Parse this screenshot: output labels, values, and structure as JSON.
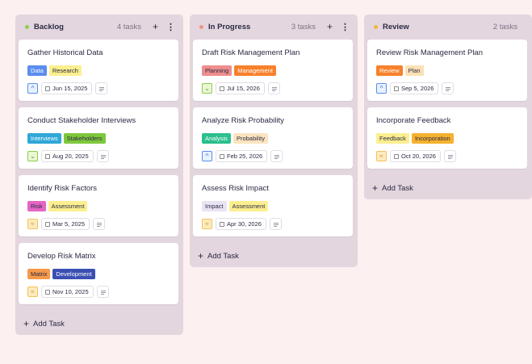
{
  "colors": {
    "background": "#fdf0f0",
    "column": "#e3d6de",
    "text": "#2b2a45"
  },
  "columns": [
    {
      "title": "Backlog",
      "count": "4 tasks",
      "dot": "#8fce55",
      "add_task": "Add Task",
      "cards": [
        {
          "title": "Gather Historical Data",
          "tags": [
            {
              "label": "Data",
              "bg": "#5b8def",
              "fg": "#fff"
            },
            {
              "label": "Research",
              "bg": "#fcef8f",
              "fg": "#2b2a45"
            }
          ],
          "priority": "up-chevron",
          "date": "Jun 15, 2025"
        },
        {
          "title": "Conduct Stakeholder Interviews",
          "tags": [
            {
              "label": "Interviews",
              "bg": "#2fa7d8",
              "fg": "#fff"
            },
            {
              "label": "Stakeholders",
              "bg": "#7ec83c",
              "fg": "#2b2a45"
            }
          ],
          "priority": "down-chevron",
          "date": "Aug 20, 2025"
        },
        {
          "title": "Identify Risk Factors",
          "tags": [
            {
              "label": "Risk",
              "bg": "#e566c7",
              "fg": "#2b2a45"
            },
            {
              "label": "Assessment",
              "bg": "#fcef8f",
              "fg": "#2b2a45"
            }
          ],
          "priority": "double-up-chevron",
          "date": "Mar 5, 2025"
        },
        {
          "title": "Develop Risk Matrix",
          "tags": [
            {
              "label": "Matrix",
              "bg": "#f5994a",
              "fg": "#2b2a45"
            },
            {
              "label": "Development",
              "bg": "#3b4fb3",
              "fg": "#fff"
            }
          ],
          "priority": "double-up-chevron",
          "date": "Nov 10, 2025"
        }
      ]
    },
    {
      "title": "In Progress",
      "count": "3 tasks",
      "dot": "#f2958a",
      "add_task": "Add Task",
      "cards": [
        {
          "title": "Draft Risk Management Plan",
          "tags": [
            {
              "label": "Planning",
              "bg": "#ee8e8e",
              "fg": "#2b2a45"
            },
            {
              "label": "Management",
              "bg": "#f7812c",
              "fg": "#fff"
            }
          ],
          "priority": "down-chevron",
          "date": "Jul 15, 2026"
        },
        {
          "title": "Analyze Risk Probability",
          "tags": [
            {
              "label": "Analysis",
              "bg": "#2bbf8c",
              "fg": "#fff"
            },
            {
              "label": "Probability",
              "bg": "#fbe4bf",
              "fg": "#2b2a45"
            }
          ],
          "priority": "up-chevron",
          "date": "Feb 25, 2026"
        },
        {
          "title": "Assess Risk Impact",
          "tags": [
            {
              "label": "Impact",
              "bg": "#e9e3f4",
              "fg": "#2b2a45"
            },
            {
              "label": "Assessment",
              "bg": "#fcef8f",
              "fg": "#2b2a45"
            }
          ],
          "priority": "double-up-chevron",
          "date": "Apr 30, 2026"
        }
      ]
    },
    {
      "title": "Review",
      "count": "2 tasks",
      "dot": "#f3b53a",
      "add_task": "Add Task",
      "cards": [
        {
          "title": "Review Risk Management Plan",
          "tags": [
            {
              "label": "Review",
              "bg": "#f7812c",
              "fg": "#fff"
            },
            {
              "label": "Plan",
              "bg": "#fce1b5",
              "fg": "#2b2a45"
            }
          ],
          "priority": "up-chevron",
          "date": "Sep 5, 2026"
        },
        {
          "title": "Incorporate Feedback",
          "tags": [
            {
              "label": "Feedback",
              "bg": "#fcef8f",
              "fg": "#2b2a45"
            },
            {
              "label": "Incorporation",
              "bg": "#f6b12f",
              "fg": "#2b2a45"
            }
          ],
          "priority": "double-up-chevron",
          "date": "Oct 20, 2026"
        }
      ]
    }
  ]
}
